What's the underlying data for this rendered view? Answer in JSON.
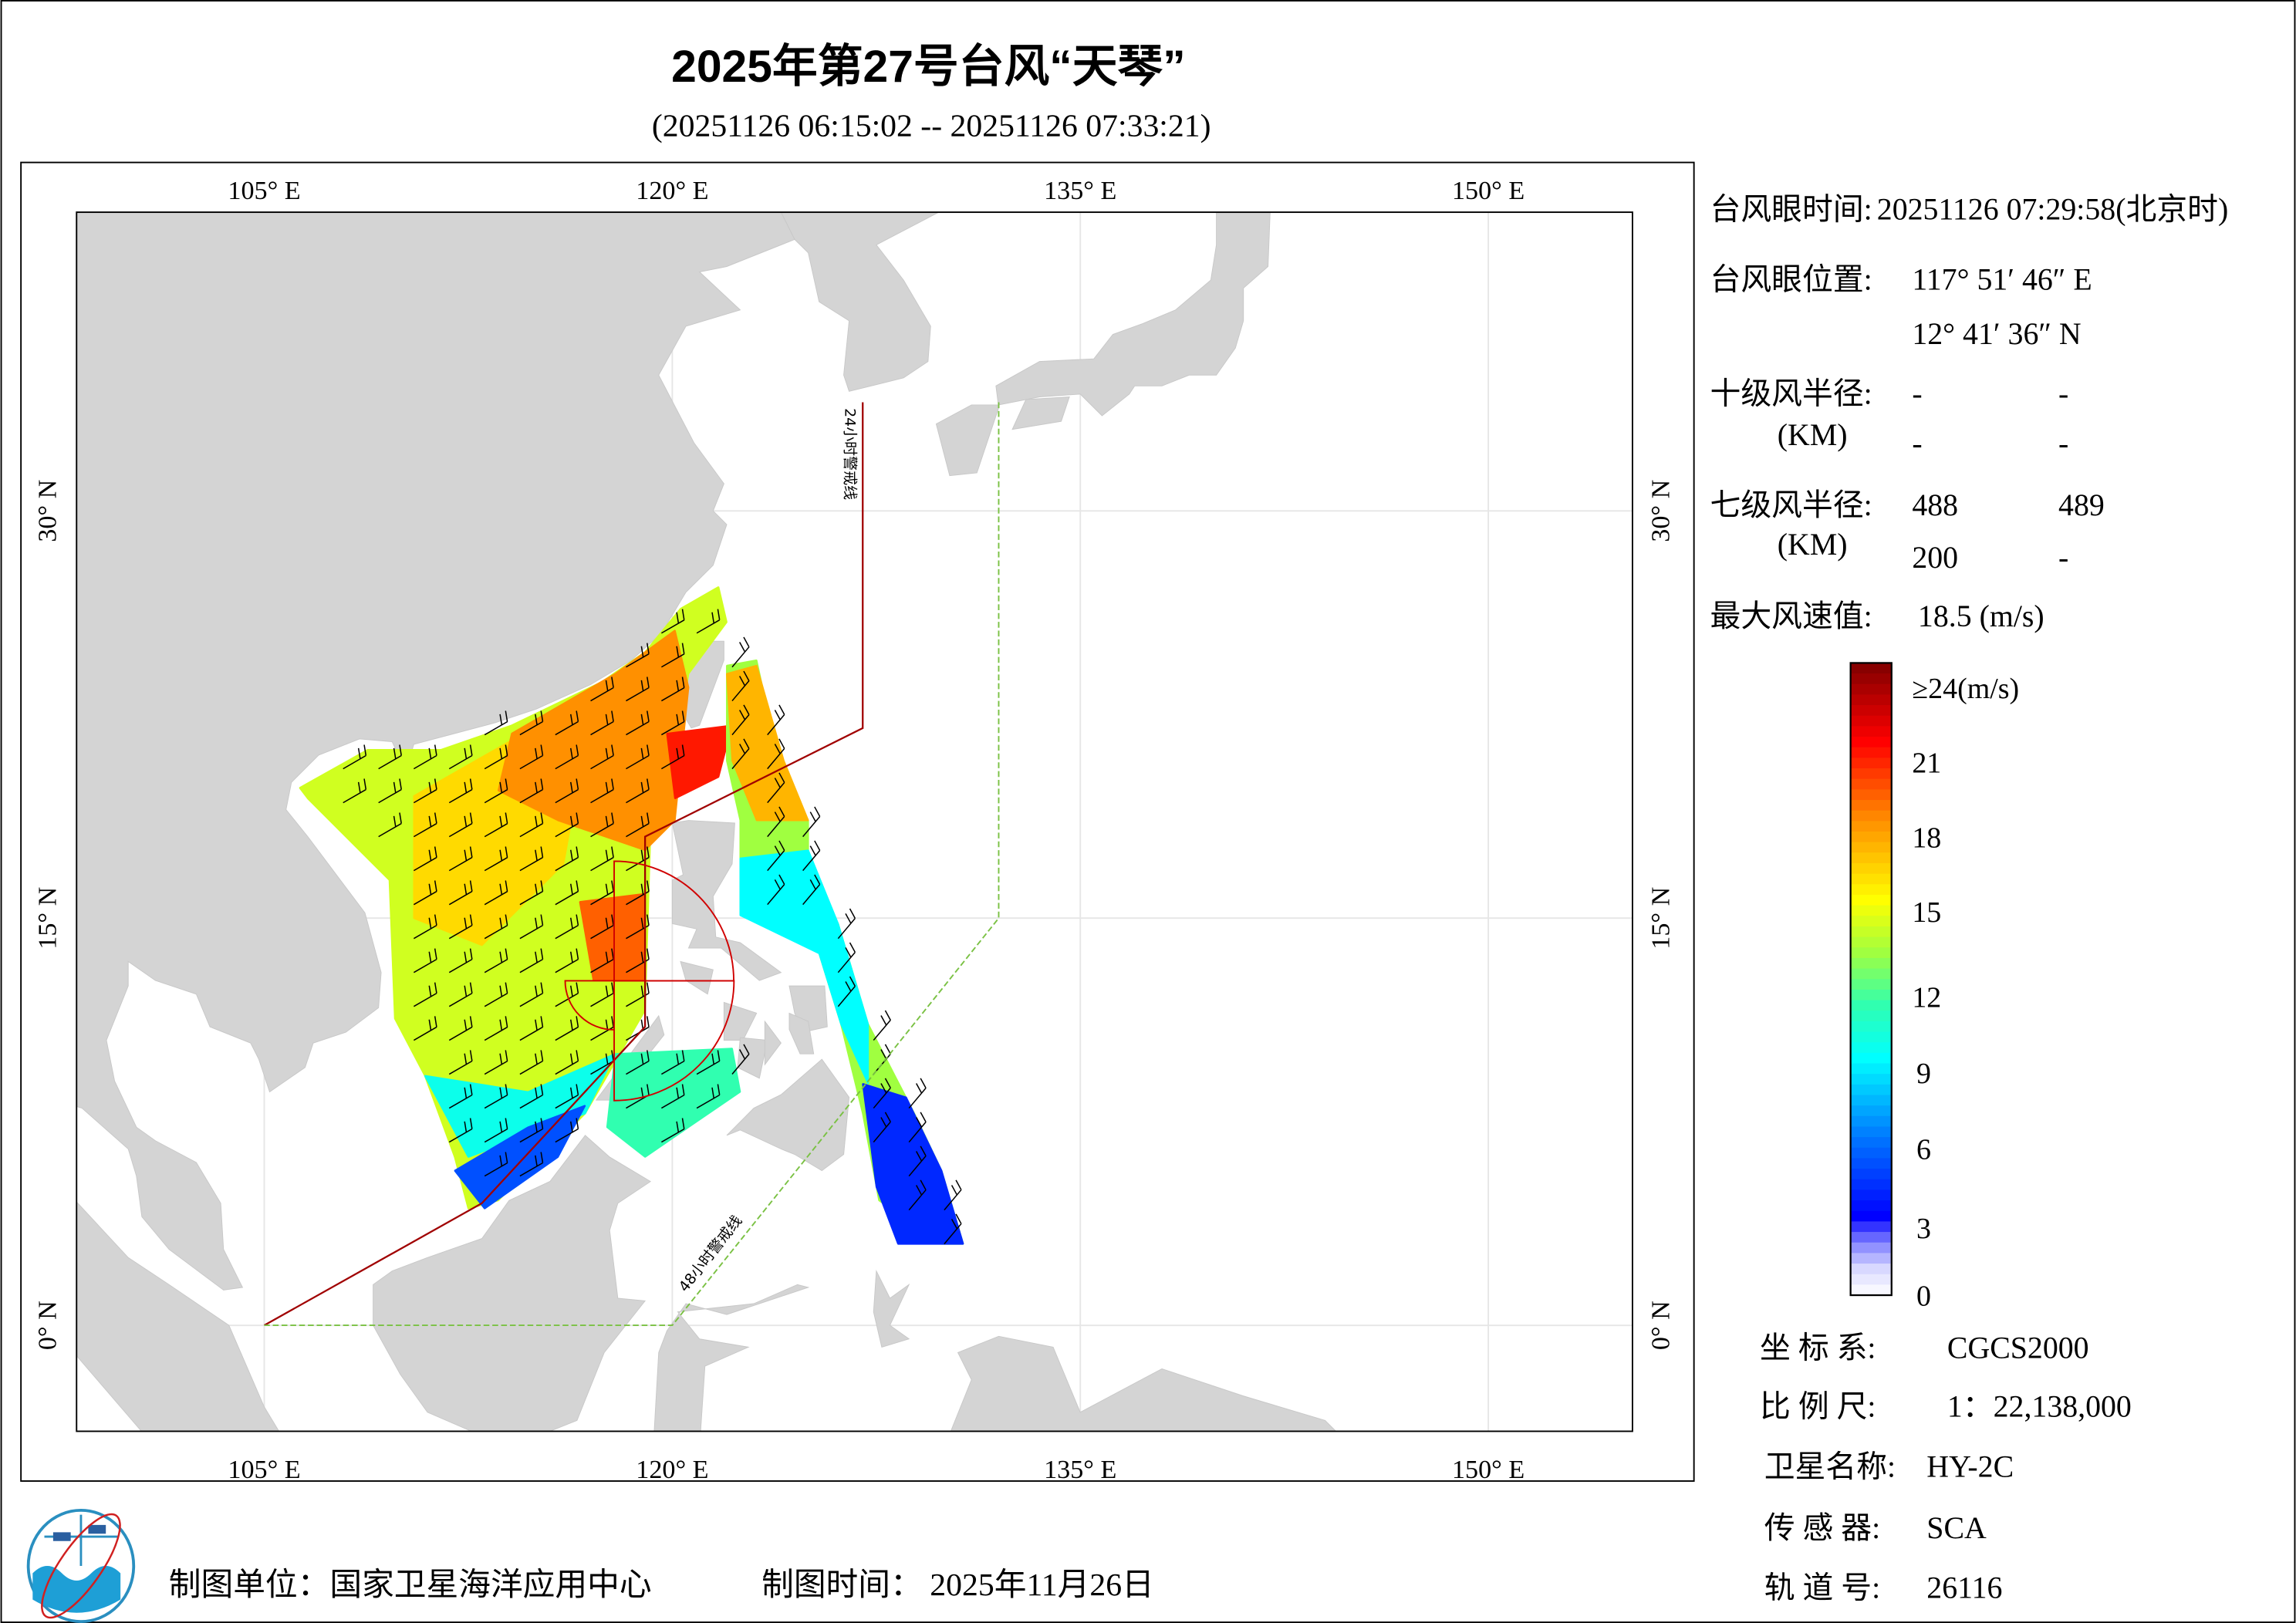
{
  "header": {
    "title": "2025年第27号台风“天琴”",
    "subtitle": "(20251126 06:15:02 -- 20251126 07:33:21)"
  },
  "map": {
    "extent": {
      "lon": [
        98.1,
        155.3
      ],
      "lat": [
        -3.9,
        41.0
      ]
    },
    "lon_ticks": [
      105,
      120,
      135,
      150
    ],
    "lat_ticks": [
      0,
      15,
      30
    ],
    "lon_labels": [
      "105° E",
      "120° E",
      "135° E",
      "150° E"
    ],
    "lat_labels": [
      "0° N",
      "15° N",
      "30° N"
    ],
    "warning_24h": {
      "label": "24小时警戒线",
      "color": "#a00000",
      "points": [
        [
          127,
          34
        ],
        [
          127,
          22
        ],
        [
          119,
          18
        ],
        [
          119,
          11
        ],
        [
          113,
          4.5
        ],
        [
          105,
          0
        ]
      ]
    },
    "warning_48h": {
      "label": "48小时警戒线",
      "color": "#7ac143",
      "points": [
        [
          132,
          34
        ],
        [
          132,
          15
        ],
        [
          120,
          0
        ],
        [
          105,
          0
        ]
      ]
    },
    "typhoon_eye": {
      "lon": 117.863,
      "lat": 12.693
    },
    "wind_patches": [
      {
        "value": 14,
        "poly": [
          [
            106.3,
            19.8
          ],
          [
            108.8,
            21.2
          ],
          [
            111.5,
            21.2
          ],
          [
            114.1,
            22.1
          ],
          [
            117.4,
            23.7
          ],
          [
            119.0,
            24.8
          ],
          [
            120.3,
            26.4
          ],
          [
            121.7,
            27.2
          ],
          [
            122.0,
            25.9
          ],
          [
            120.6,
            24.0
          ],
          [
            120.1,
            20.8
          ],
          [
            119.2,
            18.1
          ],
          [
            119.0,
            11.6
          ],
          [
            116.8,
            7.8
          ],
          [
            113.6,
            4.6
          ],
          [
            112.5,
            4.3
          ],
          [
            112.0,
            6.2
          ],
          [
            110.9,
            9.2
          ],
          [
            109.8,
            11.3
          ],
          [
            109.6,
            16.4
          ],
          [
            108.2,
            17.8
          ],
          [
            106.6,
            19.4
          ]
        ]
      },
      {
        "value": 16,
        "poly": [
          [
            110.5,
            19.5
          ],
          [
            114,
            21.5
          ],
          [
            117,
            22.5
          ],
          [
            116,
            17
          ],
          [
            113,
            14
          ],
          [
            110.5,
            15
          ]
        ]
      },
      {
        "value": 18,
        "poly": [
          [
            114.1,
            21.8
          ],
          [
            117.9,
            24.0
          ],
          [
            120.1,
            25.6
          ],
          [
            120.6,
            23.5
          ],
          [
            120.1,
            18.6
          ],
          [
            119.0,
            17.5
          ],
          [
            115.8,
            18.6
          ],
          [
            113.6,
            19.7
          ]
        ]
      },
      {
        "value": 20.5,
        "poly": [
          [
            119.8,
            21.8
          ],
          [
            122.2,
            22.1
          ],
          [
            121.7,
            20.2
          ],
          [
            120.1,
            19.4
          ]
        ]
      },
      {
        "value": 19,
        "poly": [
          [
            116.6,
            15.6
          ],
          [
            119.0,
            15.9
          ],
          [
            119.0,
            12.7
          ],
          [
            117.1,
            12.7
          ]
        ]
      },
      {
        "value": 9.5,
        "poly": [
          [
            110.9,
            9.2
          ],
          [
            114.7,
            8.6
          ],
          [
            117.9,
            10.0
          ],
          [
            116.8,
            7.8
          ],
          [
            112.5,
            6.2
          ]
        ]
      },
      {
        "value": 5,
        "poly": [
          [
            112.0,
            5.7
          ],
          [
            114.7,
            7.3
          ],
          [
            116.8,
            8.1
          ],
          [
            115.8,
            6.2
          ],
          [
            113.1,
            4.3
          ]
        ]
      },
      {
        "value": 11,
        "poly": [
          [
            117.9,
            10.0
          ],
          [
            122.2,
            10.2
          ],
          [
            122.5,
            8.6
          ],
          [
            120.6,
            7.3
          ],
          [
            119.0,
            6.2
          ],
          [
            117.6,
            7.3
          ]
        ]
      },
      {
        "value": 13,
        "poly": [
          [
            122,
            24.3
          ],
          [
            123.1,
            24.5
          ],
          [
            123.9,
            20.8
          ],
          [
            125,
            18.6
          ],
          [
            125,
            16.4
          ],
          [
            126.1,
            14.8
          ],
          [
            127.2,
            11.1
          ],
          [
            128.9,
            7.8
          ],
          [
            129.9,
            5.7
          ],
          [
            130.7,
            3
          ],
          [
            129.9,
            3
          ],
          [
            127.6,
            4.6
          ],
          [
            127,
            7.8
          ],
          [
            126.2,
            11.1
          ],
          [
            125.4,
            13.7
          ],
          [
            124.4,
            14.8
          ],
          [
            122.5,
            15.4
          ],
          [
            122.5,
            18.6
          ],
          [
            122,
            20.8
          ]
        ]
      },
      {
        "value": 17,
        "poly": [
          [
            122,
            24
          ],
          [
            123.1,
            24.3
          ],
          [
            124.1,
            20.8
          ],
          [
            125,
            18.6
          ],
          [
            123.1,
            18.6
          ],
          [
            122.2,
            20.8
          ]
        ]
      },
      {
        "value": 9,
        "poly": [
          [
            122.5,
            17.2
          ],
          [
            125,
            17.5
          ],
          [
            126.1,
            14.8
          ],
          [
            127.2,
            11.1
          ],
          [
            127.2,
            8.9
          ],
          [
            126.2,
            11.1
          ],
          [
            125.4,
            13.7
          ],
          [
            122.5,
            15.1
          ]
        ]
      },
      {
        "value": 4,
        "poly": [
          [
            127,
            8.9
          ],
          [
            128.6,
            8.4
          ],
          [
            129.9,
            5.7
          ],
          [
            130.7,
            3
          ],
          [
            128.3,
            3
          ],
          [
            127.5,
            5.1
          ]
        ]
      }
    ]
  },
  "info": {
    "eye_time_label": "台风眼时间:",
    "eye_time_value": "20251126 07:29:58(北京时)",
    "eye_pos_label": "台风眼位置:",
    "eye_lon": "117° 51′ 46″ E",
    "eye_lat": "12° 41′ 36″ N",
    "r10_label": "十级风半径:",
    "r10_unit": "(KM)",
    "r10_values": [
      "-",
      "-",
      "-",
      "-"
    ],
    "r7_label": "七级风半径:",
    "r7_unit": "(KM)",
    "r7_values": [
      "488",
      "489",
      "200",
      "-"
    ],
    "max_wind_label": "最大风速值:",
    "max_wind_value": "18.5 (m/s)",
    "crs_label": "坐 标 系:",
    "crs_value": "CGCS2000",
    "scale_label": "比 例 尺:",
    "scale_value": "1：22,138,000",
    "satellite_label": "卫星名称:",
    "satellite_value": "HY-2C",
    "sensor_label": "传 感 器:",
    "sensor_value": "SCA",
    "orbit_label": "轨 道 号:",
    "orbit_value": "26116"
  },
  "colorbar": {
    "labels": [
      "≥24(m/s)",
      "21",
      "18",
      "15",
      "12",
      "9",
      "6",
      "3",
      "0"
    ],
    "stops": [
      [
        0,
        "#ffffff"
      ],
      [
        1,
        "#d8d8ff"
      ],
      [
        2,
        "#8080ff"
      ],
      [
        3,
        "#0000ff"
      ],
      [
        6,
        "#0078ff"
      ],
      [
        9,
        "#00ffff"
      ],
      [
        11,
        "#30ffb0"
      ],
      [
        13,
        "#a0ff40"
      ],
      [
        15,
        "#ffff00"
      ],
      [
        18,
        "#ff9000"
      ],
      [
        21,
        "#ff0000"
      ],
      [
        24,
        "#800000"
      ]
    ]
  },
  "footer": {
    "unit_label": "制图单位：国家卫星海洋应用中心",
    "time_label": "制图时间：",
    "time_value": "2025年11月26日"
  },
  "colors": {
    "land": "#d4d4d4",
    "grid": "#e6e6e6",
    "frame": "#000000"
  }
}
